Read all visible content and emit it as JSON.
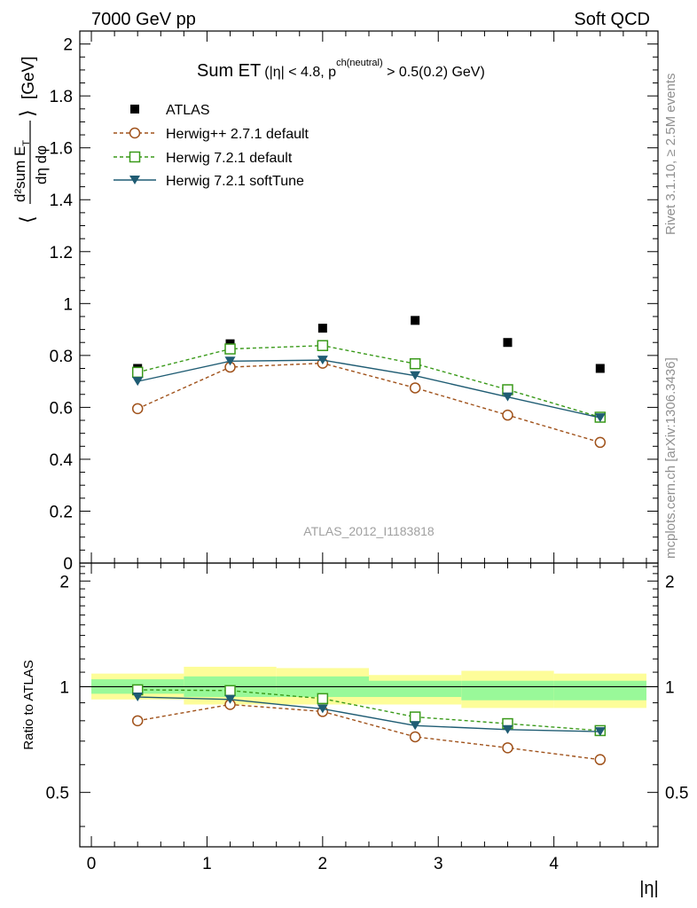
{
  "header": {
    "left": "7000 GeV pp",
    "right": "Soft QCD"
  },
  "side_labels": {
    "rivet": "Rivet 3.1.10, ≥ 2.5M events",
    "mcplots": "mcplots.cern.ch [arXiv:1306.3436]"
  },
  "colors": {
    "atlas": "#000000",
    "herwigpp": "#a0521b",
    "h721_default": "#3a9a1a",
    "h721_soft": "#1f5c73",
    "band_inner": "#99f999",
    "band_outer": "#fdfd99"
  },
  "chart_data": [
    {
      "type": "line",
      "title": "Sum ET (|η| < 4.8, p^ch(neutral) > 0.5(0.2) GeV)",
      "title_parts": {
        "main": "Sum ET",
        "cond": "(|η| < 4.8, p",
        "sup": "ch(neutral)",
        "tail": " > 0.5(0.2) GeV)"
      },
      "ylabel": "⟨ d²sum E_T / dη dφ ⟩ [GeV]",
      "ylabel_parts": {
        "num": "d²sum E",
        "numsub": "T",
        "den": "dη dφ",
        "unit": "[GeV]"
      },
      "watermark": "ATLAS_2012_I1183818",
      "xlim": [
        -0.1,
        4.9
      ],
      "ylim": [
        0,
        2.05
      ],
      "yticks": [
        0,
        0.2,
        0.4,
        0.6,
        0.8,
        1,
        1.2,
        1.4,
        1.6,
        1.8,
        2
      ],
      "ytick_labels": [
        "0",
        "0.2",
        "0.4",
        "0.6",
        "0.8",
        "1",
        "1.2",
        "1.4",
        "1.6",
        "1.8",
        "2"
      ],
      "legend_position": "top-left",
      "x": [
        0.4,
        1.2,
        2.0,
        2.8,
        3.6,
        4.4
      ],
      "series": [
        {
          "id": "atlas",
          "name": "ATLAS",
          "marker": "filled-square",
          "values": [
            0.75,
            0.845,
            0.905,
            0.935,
            0.85,
            0.75
          ]
        },
        {
          "id": "herwigpp",
          "name": "Herwig++ 2.7.1 default",
          "marker": "open-circle",
          "dashed": true,
          "values": [
            0.595,
            0.755,
            0.77,
            0.675,
            0.57,
            0.465
          ]
        },
        {
          "id": "h721_default",
          "name": "Herwig 7.2.1 default",
          "marker": "open-square",
          "dashed": true,
          "values": [
            0.735,
            0.825,
            0.838,
            0.768,
            0.668,
            0.562
          ]
        },
        {
          "id": "h721_soft",
          "name": "Herwig 7.2.1 softTune",
          "marker": "filled-triangle-down",
          "dashed": false,
          "values": [
            0.7,
            0.778,
            0.782,
            0.722,
            0.64,
            0.56
          ]
        }
      ]
    },
    {
      "type": "line",
      "ylabel": "Ratio to ATLAS",
      "xlabel": "|η|",
      "xlim": [
        -0.1,
        4.9
      ],
      "ylim": [
        0.35,
        2.25
      ],
      "yticks": [
        0.5,
        1,
        2
      ],
      "ytick_labels": [
        "0.5",
        "1",
        "2"
      ],
      "xticks": [
        0,
        1,
        2,
        3,
        4
      ],
      "xtick_labels": [
        "0",
        "1",
        "2",
        "3",
        "4"
      ],
      "reference_line": 1,
      "uncertainty_bands": [
        {
          "xlo": 0.0,
          "xhi": 0.8,
          "inner": [
            0.955,
            1.05
          ],
          "outer": [
            0.92,
            1.09
          ]
        },
        {
          "xlo": 0.8,
          "xhi": 1.6,
          "inner": [
            0.935,
            1.07
          ],
          "outer": [
            0.89,
            1.14
          ]
        },
        {
          "xlo": 1.6,
          "xhi": 2.4,
          "inner": [
            0.935,
            1.07
          ],
          "outer": [
            0.89,
            1.13
          ]
        },
        {
          "xlo": 2.4,
          "xhi": 3.2,
          "inner": [
            0.935,
            1.04
          ],
          "outer": [
            0.89,
            1.08
          ]
        },
        {
          "xlo": 3.2,
          "xhi": 4.0,
          "inner": [
            0.915,
            1.04
          ],
          "outer": [
            0.87,
            1.11
          ]
        },
        {
          "xlo": 4.0,
          "xhi": 4.8,
          "inner": [
            0.915,
            1.04
          ],
          "outer": [
            0.87,
            1.09
          ]
        }
      ],
      "x": [
        0.4,
        1.2,
        2.0,
        2.8,
        3.6,
        4.4
      ],
      "series": [
        {
          "id": "herwigpp",
          "name": "Herwig++ 2.7.1 default",
          "values": [
            0.8,
            0.89,
            0.85,
            0.72,
            0.67,
            0.62
          ]
        },
        {
          "id": "h721_default",
          "name": "Herwig 7.2.1 default",
          "values": [
            0.98,
            0.975,
            0.925,
            0.82,
            0.785,
            0.75
          ]
        },
        {
          "id": "h721_soft",
          "name": "Herwig 7.2.1 softTune",
          "values": [
            0.935,
            0.92,
            0.865,
            0.775,
            0.755,
            0.745
          ]
        }
      ]
    }
  ]
}
